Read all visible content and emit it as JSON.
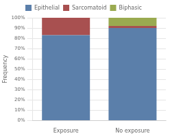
{
  "chart_data": {
    "type": "bar",
    "stacked": true,
    "categories": [
      "Exposure",
      "No exposure"
    ],
    "series": [
      {
        "name": "Epithelial",
        "color": "#5b7faa",
        "values": [
          83,
          90
        ]
      },
      {
        "name": "Sarcomatoid",
        "color": "#a85050",
        "values": [
          17,
          2
        ]
      },
      {
        "name": "Biphasic",
        "color": "#9aaa50",
        "values": [
          0,
          8
        ]
      }
    ],
    "ylabel": "Frequency",
    "ylim": [
      0,
      100
    ],
    "yticks": [
      {
        "value": 0,
        "label": "0%"
      },
      {
        "value": 10,
        "label": "10%"
      },
      {
        "value": 20,
        "label": "20%"
      },
      {
        "value": 30,
        "label": "30%"
      },
      {
        "value": 40,
        "label": "40%"
      },
      {
        "value": 50,
        "label": "50%"
      },
      {
        "value": 60,
        "label": "60%"
      },
      {
        "value": 70,
        "label": "70%"
      },
      {
        "value": 80,
        "label": "80%"
      },
      {
        "value": 90,
        "label": "90%"
      },
      {
        "value": 100,
        "label": "100%"
      }
    ],
    "grid": true,
    "legend": "top"
  }
}
